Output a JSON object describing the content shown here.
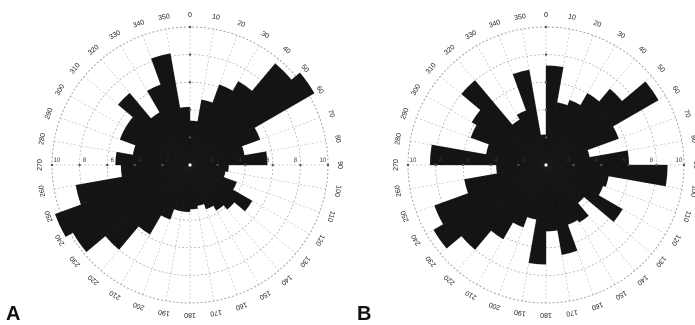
{
  "figure": {
    "panel_a_label": "A",
    "panel_b_label": "B"
  },
  "chart_data": [
    {
      "type": "rose",
      "panel": "A",
      "title": "",
      "angle_direction": "clockwise",
      "zero_direction": "top",
      "sector_width_deg": 10,
      "angle_ticks": [
        0,
        10,
        20,
        30,
        40,
        50,
        60,
        70,
        80,
        90,
        100,
        110,
        120,
        130,
        140,
        150,
        160,
        170,
        180,
        190,
        200,
        210,
        220,
        230,
        240,
        250,
        260,
        270,
        280,
        290,
        300,
        310,
        320,
        330,
        340,
        350
      ],
      "radial_range": [
        0,
        10
      ],
      "radial_ticks": [
        2,
        4,
        6,
        8
      ],
      "ring_labels": [
        "10",
        "8",
        "6",
        "4",
        "2",
        "",
        "2",
        "4",
        "6",
        "8",
        "10"
      ],
      "ring_labels_left": [
        "10",
        "8",
        "6",
        "4",
        "2"
      ],
      "ring_labels_right": [
        "2",
        "4",
        "6",
        "8",
        "10"
      ],
      "bin_start_deg": [
        0,
        10,
        20,
        30,
        40,
        50,
        60,
        70,
        80,
        90,
        100,
        110,
        120,
        130,
        140,
        150,
        160,
        170,
        180,
        190,
        200,
        210,
        220,
        230,
        240,
        250,
        260,
        270,
        280,
        290,
        300,
        310,
        320,
        330,
        340,
        350
      ],
      "values": [
        3.2,
        4.8,
        6.2,
        7.0,
        9.6,
        10.4,
        5.4,
        4.0,
        5.6,
        2.8,
        2.6,
        3.6,
        5.2,
        4.2,
        3.8,
        3.4,
        3.0,
        3.2,
        3.4,
        3.4,
        4.2,
        5.8,
        8.0,
        9.8,
        10.4,
        8.4,
        5.0,
        5.4,
        4.2,
        5.4,
        5.4,
        6.8,
        4.4,
        6.2,
        8.2,
        4.2
      ],
      "grid": true,
      "legend": "none"
    },
    {
      "type": "rose",
      "panel": "B",
      "title": "",
      "angle_direction": "clockwise",
      "zero_direction": "top",
      "sector_width_deg": 10,
      "angle_ticks": [
        0,
        10,
        20,
        30,
        40,
        50,
        60,
        70,
        80,
        90,
        100,
        110,
        120,
        130,
        140,
        150,
        160,
        170,
        180,
        190,
        200,
        210,
        220,
        230,
        240,
        250,
        260,
        270,
        280,
        290,
        300,
        310,
        320,
        330,
        340,
        350
      ],
      "radial_range": [
        0,
        10
      ],
      "radial_ticks": [
        2,
        4,
        6,
        8
      ],
      "ring_labels_left": [
        "10",
        "8",
        "6",
        "4",
        "2"
      ],
      "ring_labels_right": [
        "2",
        "4",
        "6",
        "8",
        "10"
      ],
      "bin_start_deg": [
        0,
        10,
        20,
        30,
        40,
        50,
        60,
        70,
        80,
        90,
        100,
        110,
        120,
        130,
        140,
        150,
        160,
        170,
        180,
        190,
        200,
        210,
        220,
        230,
        240,
        250,
        260,
        270,
        280,
        290,
        300,
        310,
        320,
        330,
        340,
        350
      ],
      "values": [
        7.2,
        4.6,
        5.0,
        6.0,
        7.2,
        9.4,
        5.6,
        3.2,
        6.0,
        8.8,
        4.6,
        4.4,
        6.4,
        3.6,
        4.8,
        4.6,
        6.6,
        4.8,
        7.2,
        4.0,
        4.8,
        6.2,
        8.0,
        9.4,
        8.6,
        6.0,
        3.6,
        8.4,
        4.4,
        5.8,
        6.2,
        8.0,
        3.8,
        4.2,
        7.0,
        2.2
      ],
      "grid": true,
      "legend": "none"
    }
  ]
}
